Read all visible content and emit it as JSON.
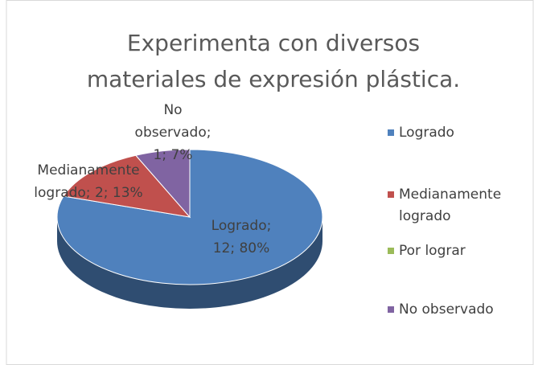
{
  "chart_data": {
    "type": "pie",
    "title": "Experimenta con diversos materiales de expresión plástica.",
    "categories": [
      "Logrado",
      "Medianamente logrado",
      "Por lograr",
      "No observado"
    ],
    "values": [
      12,
      2,
      0,
      1
    ],
    "value_labels": [
      "Logrado; 12; 80%",
      "Medianamente logrado; 2; 13%",
      null,
      "No observado; 1; 7%"
    ],
    "colors": [
      "#4f81bd",
      "#c0504d",
      "#9bbb59",
      "#8064a2"
    ],
    "legend": "right"
  }
}
